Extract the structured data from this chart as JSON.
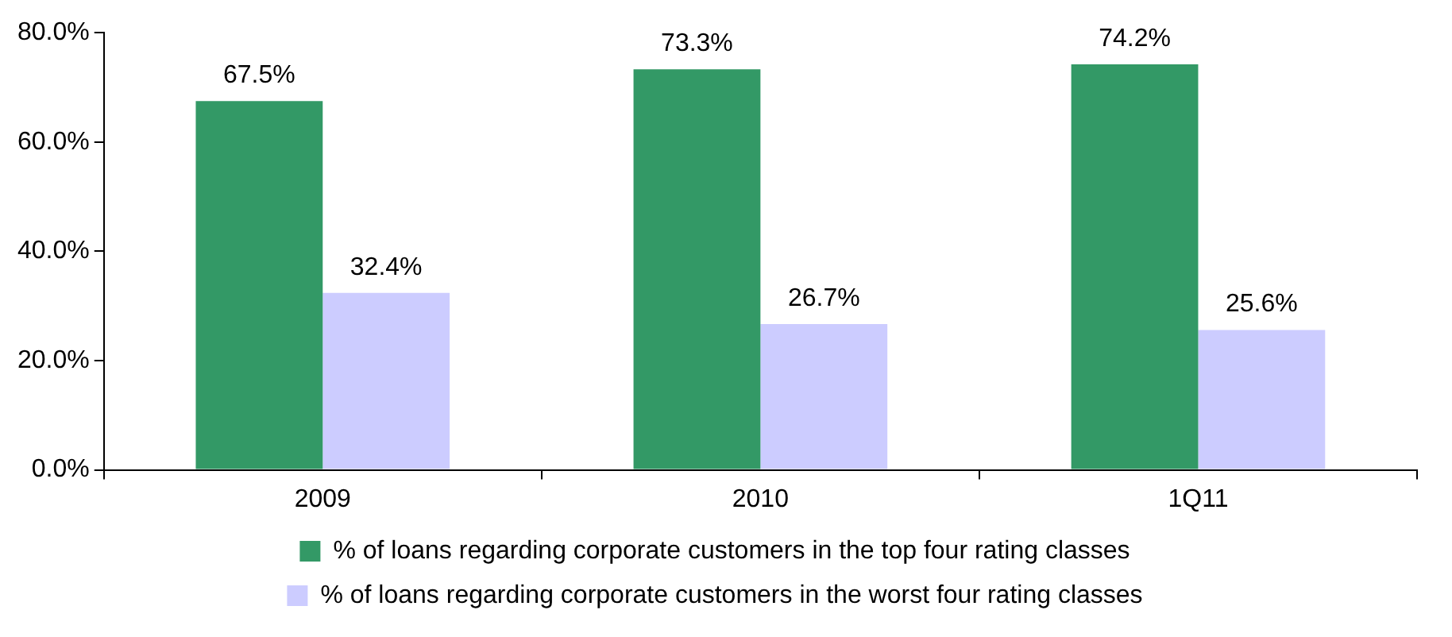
{
  "chart_data": {
    "type": "bar",
    "categories": [
      "2009",
      "2010",
      "1Q11"
    ],
    "series": [
      {
        "name": "% of loans regarding corporate customers in the top four rating classes",
        "color": "#339966",
        "values": [
          67.5,
          73.3,
          74.2
        ],
        "value_labels": [
          "67.5%",
          "73.3%",
          "74.2%"
        ]
      },
      {
        "name": "% of loans regarding corporate customers in the worst four rating classes",
        "color": "#ccccff",
        "values": [
          32.4,
          26.7,
          25.6
        ],
        "value_labels": [
          "32.4%",
          "26.7%",
          "25.6%"
        ]
      }
    ],
    "ylim": [
      0,
      80
    ],
    "yticks": [
      {
        "value": 0,
        "label": "0.0%"
      },
      {
        "value": 20,
        "label": "20.0%"
      },
      {
        "value": 40,
        "label": "40.0%"
      },
      {
        "value": 60,
        "label": "60.0%"
      },
      {
        "value": 80,
        "label": "80.0%"
      }
    ],
    "grid": false,
    "legend": "bottom"
  }
}
